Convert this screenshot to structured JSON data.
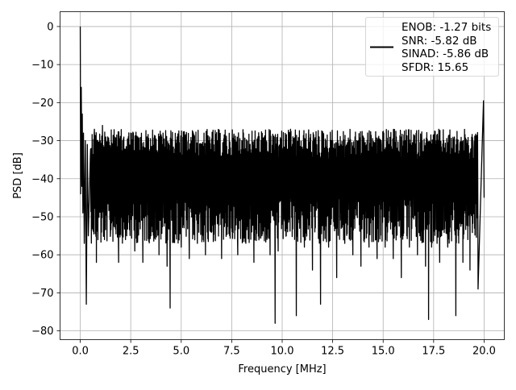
{
  "chart_data": {
    "type": "line",
    "title": "",
    "xlabel": "Frequency [MHz]",
    "ylabel": "PSD [dB]",
    "xlim": [
      -1.0,
      21.0
    ],
    "ylim": [
      -82.3,
      3.9
    ],
    "xticks": [
      0.0,
      2.5,
      5.0,
      7.5,
      10.0,
      12.5,
      15.0,
      17.5,
      20.0
    ],
    "xtick_labels": [
      "0.0",
      "2.5",
      "5.0",
      "7.5",
      "10.0",
      "12.5",
      "15.0",
      "17.5",
      "20.0"
    ],
    "yticks": [
      0,
      -10,
      -20,
      -30,
      -40,
      -50,
      -60,
      -70,
      -80
    ],
    "ytick_labels": [
      "0",
      "−10",
      "−20",
      "−30",
      "−40",
      "−50",
      "−60",
      "−70",
      "−80"
    ],
    "grid": true,
    "legend_position": "top-right",
    "series": [
      {
        "color": "#000000",
        "x": [
          0.0,
          0.02,
          0.05,
          0.08,
          0.1,
          0.13,
          0.16,
          0.2,
          0.25,
          0.3,
          0.35,
          0.4,
          0.5,
          0.6,
          0.7,
          0.8,
          0.9,
          1.0,
          1.1,
          1.2,
          1.3,
          1.5,
          1.7,
          1.9,
          2.1,
          2.3,
          2.5,
          2.7,
          2.9,
          3.1,
          3.3,
          3.5,
          3.7,
          3.9,
          4.1,
          4.3,
          4.45,
          4.6,
          4.8,
          5.0,
          5.2,
          5.4,
          5.6,
          5.8,
          6.0,
          6.2,
          6.4,
          6.6,
          6.8,
          7.0,
          7.2,
          7.4,
          7.6,
          7.8,
          8.0,
          8.2,
          8.4,
          8.6,
          8.8,
          9.0,
          9.2,
          9.4,
          9.65,
          9.8,
          10.0,
          10.2,
          10.4,
          10.7,
          10.9,
          11.1,
          11.3,
          11.5,
          11.7,
          11.9,
          12.1,
          12.3,
          12.5,
          12.7,
          12.9,
          13.1,
          13.3,
          13.5,
          13.7,
          13.9,
          14.1,
          14.3,
          14.5,
          14.7,
          14.9,
          15.1,
          15.3,
          15.5,
          15.7,
          15.9,
          16.1,
          16.3,
          16.5,
          16.7,
          16.9,
          17.1,
          17.25,
          17.4,
          17.6,
          17.8,
          18.0,
          18.2,
          18.4,
          18.6,
          18.8,
          18.95,
          19.1,
          19.3,
          19.5,
          19.7,
          19.9,
          19.97,
          20.0
        ],
        "y": [
          0,
          -44,
          -16,
          -42,
          -23,
          -49,
          -28,
          -57,
          -30,
          -73,
          -31,
          -55,
          -34,
          -52,
          -27,
          -62,
          -33,
          -47,
          -26,
          -56,
          -31,
          -54,
          -29,
          -62,
          -30,
          -55,
          -28,
          -59,
          -31,
          -62,
          -29,
          -55,
          -30,
          -60,
          -28,
          -63,
          -74,
          -55,
          -29,
          -58,
          -30,
          -61,
          -28,
          -57,
          -31,
          -60,
          -29,
          -56,
          -30,
          -61,
          -31,
          -55,
          -29,
          -60,
          -30,
          -57,
          -31,
          -62,
          -29,
          -55,
          -30,
          -60,
          -78,
          -59,
          -32,
          -55,
          -30,
          -76,
          -32,
          -58,
          -30,
          -64,
          -31,
          -73,
          -32,
          -58,
          -30,
          -66,
          -31,
          -57,
          -32,
          -60,
          -30,
          -63,
          -31,
          -58,
          -32,
          -61,
          -30,
          -58,
          -31,
          -61,
          -32,
          -66,
          -30,
          -58,
          -31,
          -60,
          -32,
          -63,
          -77,
          -58,
          -31,
          -62,
          -30,
          -58,
          -32,
          -76,
          -31,
          -62,
          -30,
          -64,
          -32,
          -69,
          -32,
          -19.5,
          -45
        ]
      }
    ],
    "legend": {
      "lines": [
        "ENOB: -1.27 bits",
        "SNR: -5.82 dB",
        "SINAD: -5.86 dB",
        "SFDR: 15.65"
      ]
    }
  }
}
